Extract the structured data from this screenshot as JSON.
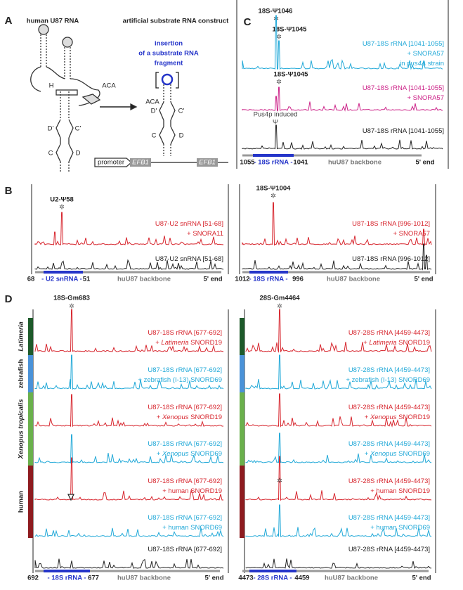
{
  "panel_a": {
    "label": "A",
    "left_title": "human U87 RNA",
    "right_title": "artificial substrate RNA construct",
    "insertion": [
      "insertion",
      "of a substrate RNA",
      "fragment"
    ],
    "left_labels": {
      "h": "H",
      "aca": "ACA",
      "d1": "D'",
      "c1": "C'",
      "c": "C",
      "d": "D"
    },
    "right_labels": {
      "aca": "ACA",
      "d1": "D'",
      "c1": "C'",
      "c": "C",
      "d": "D"
    },
    "promoter": "promoter",
    "efb1": [
      "EFB1",
      "EFB1"
    ]
  },
  "asterisk": "✲",
  "panel_b": {
    "label": "B",
    "left": {
      "site": "U2-Ψ58",
      "rows": [
        {
          "color": "#d7262e",
          "lines": [
            [
              {
                "text": "U87-U2 snRNA [51-68]"
              }
            ],
            [
              {
                "text": "+ SNORA11"
              }
            ]
          ]
        },
        {
          "color": "#222222",
          "lines": [
            [
              {
                "text": "U87-U2 snRNA [51-68]"
              }
            ]
          ]
        }
      ],
      "axis": {
        "start": "68",
        "region": "- U2 snRNA -",
        "end": "51",
        "backbone": "huU87 backbone",
        "five": "5' end"
      }
    },
    "right": {
      "site": "18S-Ψ1004",
      "rows": [
        {
          "color": "#d7262e",
          "lines": [
            [
              {
                "text": "U87-18S rRNA [996-1012]"
              }
            ],
            [
              {
                "text": "+ SNORA57"
              }
            ]
          ]
        },
        {
          "color": "#222222",
          "lines": [
            [
              {
                "text": "U87-18S rRNA [996-1012]"
              }
            ]
          ]
        }
      ],
      "axis": {
        "start": "1012",
        "region": "- 18S rRNA -",
        "end": "996",
        "backbone": "huU87 backbone",
        "five": "5' end"
      }
    }
  },
  "panel_c": {
    "label": "C",
    "site_top": "18S-Ψ1046",
    "site_a": "18S-Ψ1045",
    "site_b": "18S-Ψ1045",
    "induced": "Pus4p induced",
    "psi": "Ψ",
    "rows": [
      {
        "color": "#22a9d8",
        "lines": [
          [
            {
              "text": "U87-18S rRNA [1041-1055]"
            }
          ],
          [
            {
              "text": "+ SNORA57"
            }
          ],
          [
            {
              "text": "in "
            },
            {
              "text": "pus4Δ",
              "italic": true
            },
            {
              "text": " strain"
            }
          ]
        ]
      },
      {
        "color": "#cc2288",
        "lines": [
          [
            {
              "text": "U87-18S rRNA [1041-1055]"
            }
          ],
          [
            {
              "text": "+ SNORA57"
            }
          ]
        ]
      },
      {
        "color": "#222222",
        "lines": [
          [
            {
              "text": "U87-18S rRNA [1041-1055]"
            }
          ]
        ]
      }
    ],
    "axis": {
      "start": "1055",
      "region": "- 18S rRNA -",
      "end": "1041",
      "backbone": "huU87 backbone",
      "five": "5' end"
    }
  },
  "panel_d": {
    "label": "D",
    "species": [
      {
        "name": "Latimeria",
        "italic": true,
        "color": "#1d5a2a"
      },
      {
        "name": "zebrafish",
        "color": "#4a92d8"
      },
      {
        "name": "Xenopus tropicalis",
        "italic": true,
        "color": "#6ab04c"
      },
      {
        "name": "human",
        "color": "#8e1b1f"
      }
    ],
    "left": {
      "site": "18S-Gm683",
      "rows": [
        {
          "color": "#d7262e",
          "lines": [
            [
              {
                "text": "U87-18S rRNA [677-692]"
              }
            ],
            [
              {
                "text": "+ "
              },
              {
                "text": "Latimeria",
                "italic": true
              },
              {
                "text": " SNORD19"
              }
            ]
          ]
        },
        {
          "color": "#22a9d8",
          "lines": [
            [
              {
                "text": "U87-18S rRNA [677-692]"
              }
            ],
            [
              {
                "text": "+ zebrafish (I-13) SNORD69"
              }
            ]
          ]
        },
        {
          "color": "#d7262e",
          "lines": [
            [
              {
                "text": "U87-18S rRNA [677-692]"
              }
            ],
            [
              {
                "text": "+ "
              },
              {
                "text": "Xenopus",
                "italic": true
              },
              {
                "text": " SNORD19"
              }
            ]
          ]
        },
        {
          "color": "#22a9d8",
          "lines": [
            [
              {
                "text": "U87-18S rRNA [677-692]"
              }
            ],
            [
              {
                "text": "+ "
              },
              {
                "text": "Xenopus",
                "italic": true
              },
              {
                "text": " SNORD69"
              }
            ]
          ]
        },
        {
          "color": "#d7262e",
          "lines": [
            [
              {
                "text": "U87-18S rRNA [677-692]"
              }
            ],
            [
              {
                "text": "+ human SNORD19"
              }
            ]
          ]
        },
        {
          "color": "#22a9d8",
          "lines": [
            [
              {
                "text": "U87-18S rRNA [677-692]"
              }
            ],
            [
              {
                "text": "+ human SNORD69"
              }
            ]
          ]
        },
        {
          "color": "#222222",
          "lines": [
            [
              {
                "text": "U87-18S rRNA [677-692]"
              }
            ]
          ]
        }
      ],
      "axis": {
        "start": "692",
        "region": "- 18S rRNA -",
        "end": "677",
        "backbone": "huU87 backbone",
        "five": "5' end"
      }
    },
    "right": {
      "site": "28S-Gm4464",
      "rows": [
        {
          "color": "#d7262e",
          "lines": [
            [
              {
                "text": "U87-28S rRNA [4459-4473]"
              }
            ],
            [
              {
                "text": "+ "
              },
              {
                "text": "Latimeria",
                "italic": true
              },
              {
                "text": " SNORD19"
              }
            ]
          ]
        },
        {
          "color": "#22a9d8",
          "lines": [
            [
              {
                "text": "U87-28S rRNA [4459-4473]"
              }
            ],
            [
              {
                "text": "+ zebrafish (I-13) SNORD69"
              }
            ]
          ]
        },
        {
          "color": "#d7262e",
          "lines": [
            [
              {
                "text": "U87-28S rRNA [4459-4473]"
              }
            ],
            [
              {
                "text": "+ "
              },
              {
                "text": "Xenopus",
                "italic": true
              },
              {
                "text": " SNORD19"
              }
            ]
          ]
        },
        {
          "color": "#22a9d8",
          "lines": [
            [
              {
                "text": "U87-28S rRNA [4459-4473]"
              }
            ],
            [
              {
                "text": "+ "
              },
              {
                "text": "Xenopus",
                "italic": true
              },
              {
                "text": " SNORD69"
              }
            ]
          ]
        },
        {
          "color": "#d7262e",
          "lines": [
            [
              {
                "text": "U87-28S rRNA [4459-4473]"
              }
            ],
            [
              {
                "text": "+ human SNORD19"
              }
            ]
          ]
        },
        {
          "color": "#22a9d8",
          "lines": [
            [
              {
                "text": "U87-28S rRNA [4459-4473]"
              }
            ],
            [
              {
                "text": "+ human SNORD69"
              }
            ]
          ]
        },
        {
          "color": "#222222",
          "lines": [
            [
              {
                "text": "U87-28S rRNA [4459-4473]"
              }
            ]
          ]
        }
      ],
      "axis": {
        "start": "4473",
        "region": "- 28S rRNA -",
        "end": "4459",
        "backbone": "huU87 backbone",
        "five": "5' end"
      }
    }
  }
}
